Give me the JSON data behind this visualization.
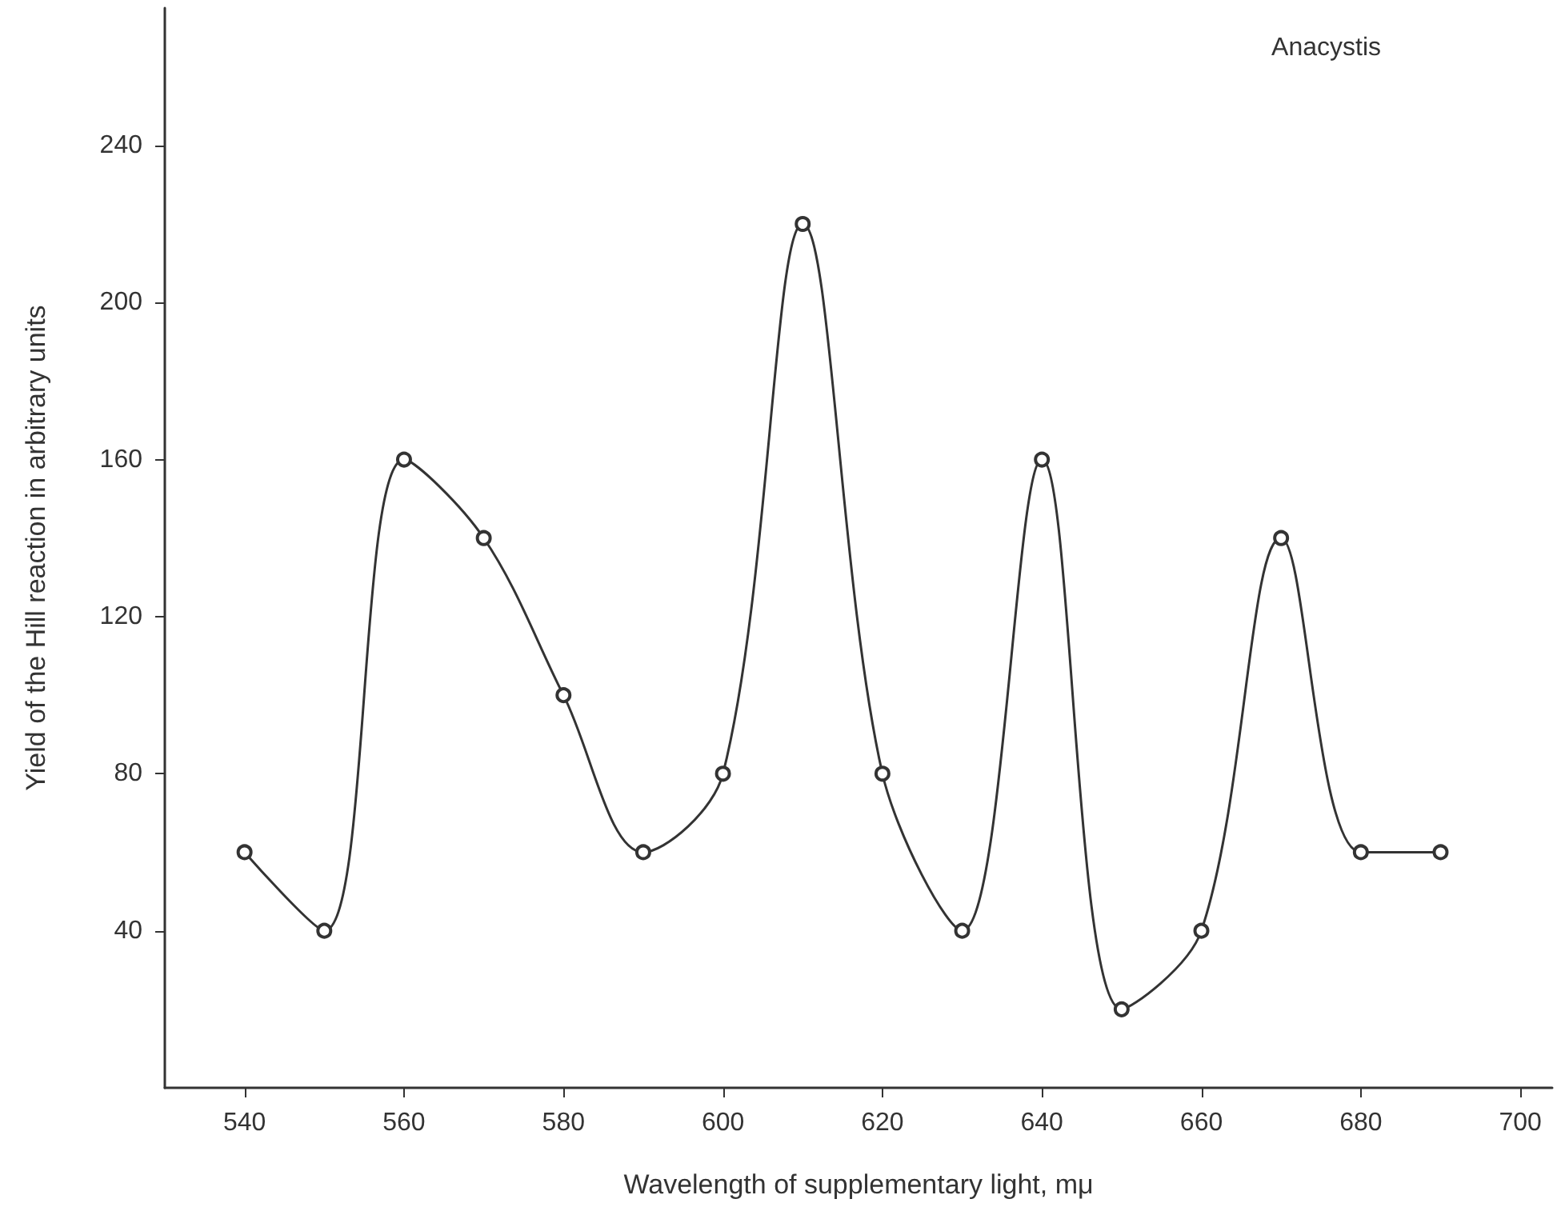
{
  "chart_data": {
    "type": "line",
    "xlabel": "Wavelength of supplementary light, mμ",
    "ylabel": "Yield of the Hill reaction in arbitrary units",
    "annotations": [
      "Anacystis"
    ],
    "x": [
      540,
      550,
      560,
      570,
      580,
      590,
      600,
      610,
      620,
      630,
      640,
      650,
      660,
      670,
      680,
      690
    ],
    "series": [
      {
        "color": "#333333",
        "values": [
          60,
          40,
          160,
          140,
          100,
          60,
          80,
          220,
          80,
          40,
          160,
          20,
          40,
          140,
          60,
          60
        ]
      }
    ],
    "xlim": [
      530,
      704
    ],
    "xticks": [
      540,
      560,
      580,
      600,
      620,
      640,
      660,
      680,
      700
    ],
    "ylim": [
      0,
      275
    ],
    "yticks": [
      40,
      80,
      120,
      160,
      200,
      240
    ],
    "grid": false,
    "marker": "circle",
    "line_style": "solid"
  }
}
